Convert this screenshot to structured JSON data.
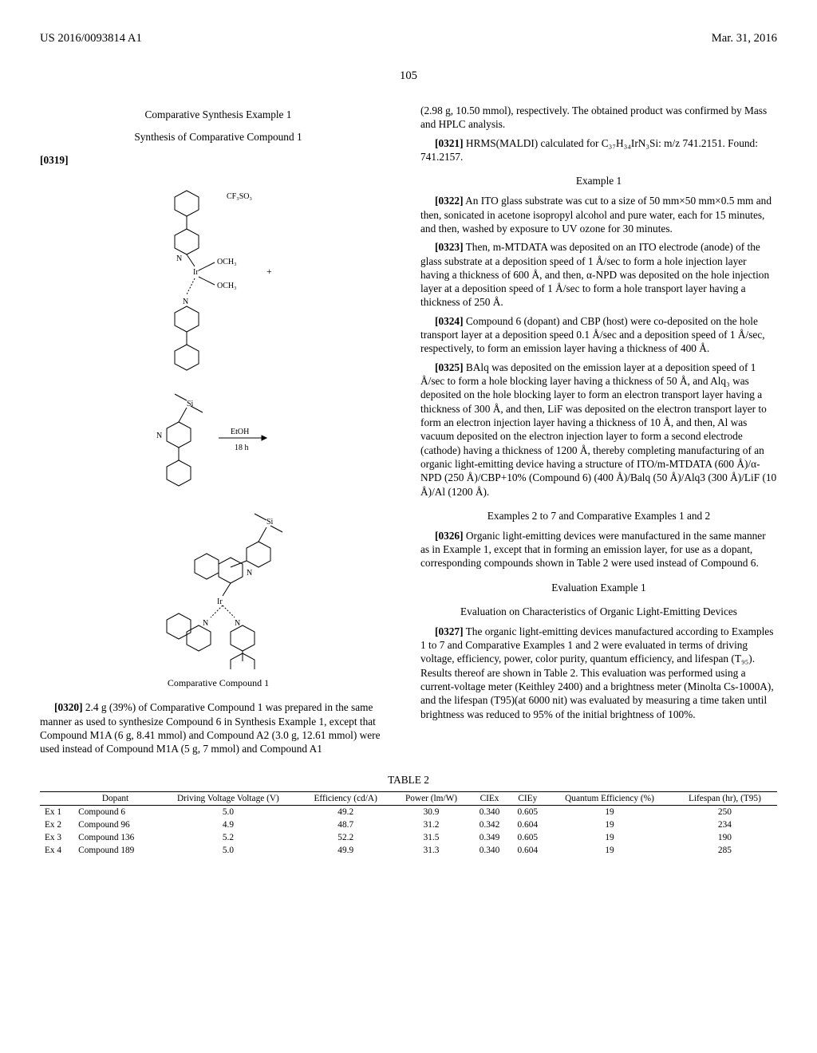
{
  "header": {
    "left": "US 2016/0093814 A1",
    "right": "Mar. 31, 2016"
  },
  "page_number": "105",
  "left_column": {
    "title1": "Comparative Synthesis Example 1",
    "title2": "Synthesis of Comparative Compound 1",
    "para_0319_num": "[0319]",
    "compound_label": "Comparative Compound 1",
    "para_0320_num": "[0320]",
    "para_0320_text": "2.4 g (39%) of Comparative Compound 1 was prepared in the same manner as used to synthesize Compound 6 in Synthesis Example 1, except that Compound M1A (6 g, 8.41 mmol) and Compound A2 (3.0 g, 12.61 mmol) were used instead of Compound M1A (5 g, 7 mmol) and Compound A1",
    "chem_labels": {
      "cf3so3": "CF₃SO₃",
      "och3_1": "OCH₃",
      "och3_2": "OCH₃",
      "ir": "Ir",
      "si": "Si",
      "plus": "+",
      "etoh": "EtOH",
      "time": "18 h",
      "n": "N"
    }
  },
  "right_column": {
    "para_cont": "(2.98 g, 10.50 mmol), respectively. The obtained product was confirmed by Mass and HPLC analysis.",
    "para_0321_num": "[0321]",
    "para_0321_text": "HRMS(MALDI) calculated for C₃₇H₃₄IrN₃Si: m/z 741.2151. Found: 741.2157.",
    "example1_title": "Example 1",
    "para_0322_num": "[0322]",
    "para_0322_text": "An ITO glass substrate was cut to a size of 50 mm×50 mm×0.5 mm and then, sonicated in acetone isopropyl alcohol and pure water, each for 15 minutes, and then, washed by exposure to UV ozone for 30 minutes.",
    "para_0323_num": "[0323]",
    "para_0323_text": "Then, m-MTDATA was deposited on an ITO electrode (anode) of the glass substrate at a deposition speed of 1 Å/sec to form a hole injection layer having a thickness of 600 Å, and then, α-NPD was deposited on the hole injection layer at a deposition speed of 1 Å/sec to form a hole transport layer having a thickness of 250 Å.",
    "para_0324_num": "[0324]",
    "para_0324_text": "Compound 6 (dopant) and CBP (host) were co-deposited on the hole transport layer at a deposition speed 0.1 Å/sec and a deposition speed of 1 Å/sec, respectively, to form an emission layer having a thickness of 400 Å.",
    "para_0325_num": "[0325]",
    "para_0325_text": "BAlq was deposited on the emission layer at a deposition speed of 1 Å/sec to form a hole blocking layer having a thickness of 50 Å, and Alq₃ was deposited on the hole blocking layer to form an electron transport layer having a thickness of 300 Å, and then, LiF was deposited on the electron transport layer to form an electron injection layer having a thickness of 10 Å, and then, Al was vacuum deposited on the electron injection layer to form a second electrode (cathode) having a thickness of 1200 Å, thereby completing manufacturing of an organic light-emitting device having a structure of ITO/m-MTDATA (600 Å)/α-NPD (250 Å)/CBP+10% (Compound 6) (400 Å)/Balq (50 Å)/Alq3 (300 Å)/LiF (10 Å)/Al (1200 Å).",
    "examples_2_7_title": "Examples 2 to 7 and Comparative Examples 1 and 2",
    "para_0326_num": "[0326]",
    "para_0326_text": "Organic light-emitting devices were manufactured in the same manner as in Example 1, except that in forming an emission layer, for use as a dopant, corresponding compounds shown in Table 2 were used instead of Compound 6.",
    "eval_title": "Evaluation Example 1",
    "eval_subtitle": "Evaluation on Characteristics of Organic Light-Emitting Devices",
    "para_0327_num": "[0327]",
    "para_0327_text": "The organic light-emitting devices manufactured according to Examples 1 to 7 and Comparative Examples 1 and 2 were evaluated in terms of driving voltage, efficiency, power, color purity, quantum efficiency, and lifespan (T₉₅). Results thereof are shown in Table 2. This evaluation was performed using a current-voltage meter (Keithley 2400) and a brightness meter (Minolta Cs-1000A), and the lifespan (T95)(at 6000 nit) was evaluated by measuring a time taken until brightness was reduced to 95% of the initial brightness of 100%."
  },
  "table2": {
    "caption": "TABLE 2",
    "columns": [
      "",
      "Dopant",
      "Driving Voltage Voltage (V)",
      "Efficiency (cd/A)",
      "Power (lm/W)",
      "CIEx",
      "CIEy",
      "Quantum Efficiency (%)",
      "Lifespan (hr), (T95)"
    ],
    "rows": [
      [
        "Ex 1",
        "Compound 6",
        "5.0",
        "49.2",
        "30.9",
        "0.340",
        "0.605",
        "19",
        "250"
      ],
      [
        "Ex 2",
        "Compound 96",
        "4.9",
        "48.7",
        "31.2",
        "0.342",
        "0.604",
        "19",
        "234"
      ],
      [
        "Ex 3",
        "Compound 136",
        "5.2",
        "52.2",
        "31.5",
        "0.349",
        "0.605",
        "19",
        "190"
      ],
      [
        "Ex 4",
        "Compound 189",
        "5.0",
        "49.9",
        "31.3",
        "0.340",
        "0.604",
        "19",
        "285"
      ]
    ]
  }
}
